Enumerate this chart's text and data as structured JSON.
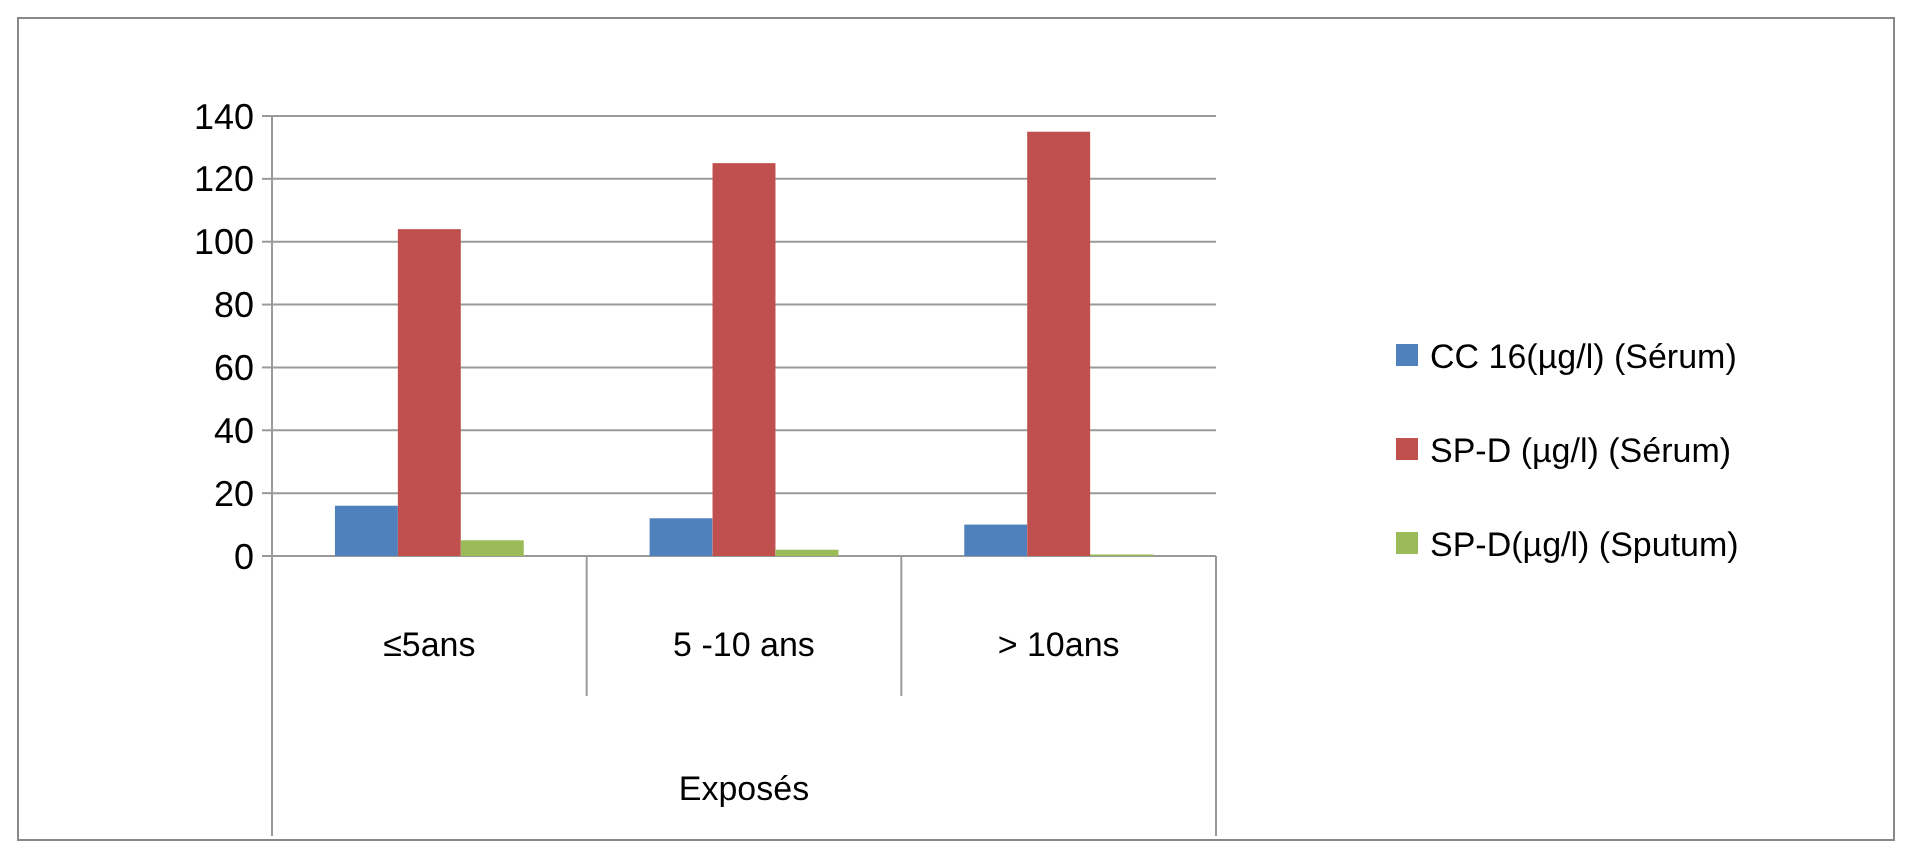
{
  "chart_data": {
    "type": "bar",
    "xlabel": "Exposés",
    "categories": [
      "≤5ans",
      "5 -10 ans",
      "> 10ans"
    ],
    "series": [
      {
        "name": "CC 16(µg/l)  (Sérum)",
        "color": "#4f81bd",
        "values": [
          16,
          12,
          10
        ]
      },
      {
        "name": "SP-D (µg/l) (Sérum)",
        "color": "#c0504d",
        "values": [
          104,
          125,
          135
        ]
      },
      {
        "name": "SP-D(µg/l)  (Sputum)",
        "color": "#9bbb59",
        "values": [
          5,
          2,
          0.5
        ]
      }
    ],
    "ylim": [
      0,
      140
    ],
    "yticks": [
      0,
      20,
      40,
      60,
      80,
      100,
      120,
      140
    ],
    "grid": "y",
    "legend": "right"
  }
}
